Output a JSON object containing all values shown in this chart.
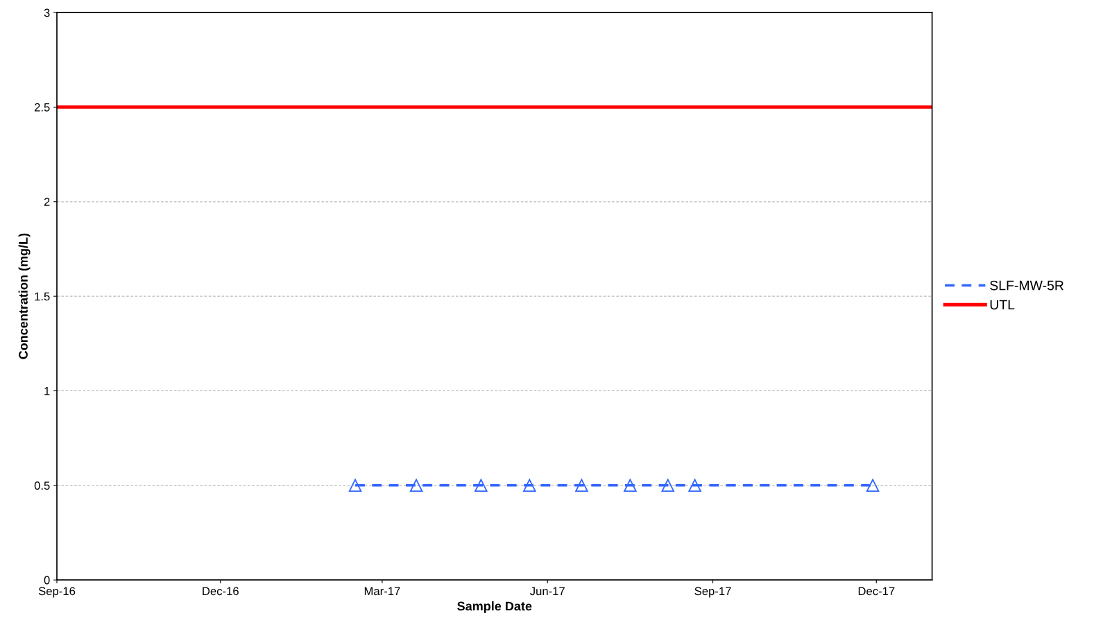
{
  "chart_data": {
    "type": "line",
    "xlabel": "Sample Date",
    "ylabel": "Concentration (mg/L)",
    "series": [
      {
        "name": "SLF-MW-5R",
        "color": "#3366ff",
        "marker": "triangle",
        "line_style": "dashed",
        "x": [
          "2017-02-14",
          "2017-03-20",
          "2017-04-25",
          "2017-05-22",
          "2017-06-20",
          "2017-07-17",
          "2017-08-07",
          "2017-08-22",
          "2017-11-29"
        ],
        "values": [
          0.5,
          0.5,
          0.5,
          0.5,
          0.5,
          0.5,
          0.5,
          0.5,
          0.5
        ]
      }
    ],
    "ref_lines": [
      {
        "axis": "y",
        "value": 2.5,
        "label": "UTL",
        "color": "#ff0000",
        "line_style": "solid"
      }
    ],
    "xlim": [
      "2016-09-01",
      "2018-01-01"
    ],
    "xticks": [
      {
        "value": "2016-09-01",
        "label": "Sep-16"
      },
      {
        "value": "2016-12-01",
        "label": "Dec-16"
      },
      {
        "value": "2017-03-01",
        "label": "Mar-17"
      },
      {
        "value": "2017-06-01",
        "label": "Jun-17"
      },
      {
        "value": "2017-09-01",
        "label": "Sep-17"
      },
      {
        "value": "2017-12-01",
        "label": "Dec-17"
      }
    ],
    "ylim": [
      0,
      3
    ],
    "yticks": [
      0,
      0.5,
      1,
      1.5,
      2,
      2.5,
      3
    ],
    "grid": "y",
    "legend": "right"
  }
}
